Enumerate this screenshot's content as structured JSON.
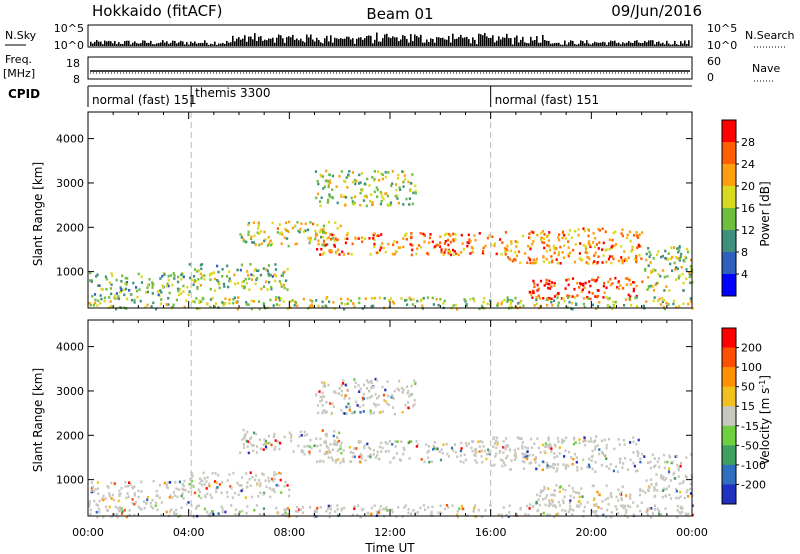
{
  "header": {
    "station": "Hokkaido (fitACF)",
    "beam": "Beam 01",
    "date": "09/Jun/2016"
  },
  "panels": {
    "nsky": {
      "label": "N.Sky",
      "tick_top": "10^5",
      "tick_bottom": "10^0"
    },
    "nsearch": {
      "label": "N.Search",
      "tick_top": "10^5",
      "tick_bottom": "10^0"
    },
    "freq": {
      "label_line1": "Freq.",
      "label_line2": "[MHz]",
      "tick_top": "18",
      "tick_bottom": "8"
    },
    "nave": {
      "label": "Nave",
      "tick_top": "60",
      "tick_bottom": "0"
    },
    "cpid": {
      "label": "CPID",
      "segments": [
        {
          "label": "normal (fast)  151",
          "start_hour": 0
        },
        {
          "label": "themis 3300",
          "start_hour": 4.1
        },
        {
          "label": "normal (fast)  151",
          "start_hour": 16
        }
      ]
    }
  },
  "chart_data": {
    "type": "heatmap",
    "x_range_hours": [
      0,
      24
    ],
    "x_tick_labels": [
      "00:00",
      "04:00",
      "08:00",
      "12:00",
      "16:00",
      "20:00",
      "00:00"
    ],
    "xlabel": "Time UT",
    "ylabel": "Slant Range [km]",
    "y_range_km": [
      180,
      4600
    ],
    "y_ticks": [
      1000,
      2000,
      3000,
      4000
    ],
    "y_tick_labels": [
      "1000",
      "2000",
      "3000",
      "4000"
    ],
    "mode_change_hours": [
      4.1,
      16
    ],
    "power_panel": {
      "colorbar_label": "Power [dB]",
      "colorbar_ticks": [
        "4",
        "8",
        "12",
        "16",
        "20",
        "24",
        "28"
      ],
      "colorbar_colors": [
        "#0000ff",
        "#2f5fbf",
        "#3f8f7f",
        "#6fbf3f",
        "#d9d91f",
        "#ff9f0f",
        "#ff5f00",
        "#ff0000"
      ],
      "scatter_regions": [
        {
          "t_start": 0,
          "t_end": 4,
          "r_start": 450,
          "r_end": 1000,
          "level": 0.4
        },
        {
          "t_start": 4,
          "t_end": 8,
          "r_start": 600,
          "r_end": 1200,
          "level": 0.45
        },
        {
          "t_start": 6,
          "t_end": 10,
          "r_start": 1600,
          "r_end": 2150,
          "level": 0.55
        },
        {
          "t_start": 9,
          "t_end": 13,
          "r_start": 2500,
          "r_end": 3300,
          "level": 0.5
        },
        {
          "t_start": 9,
          "t_end": 16,
          "r_start": 1400,
          "r_end": 1900,
          "level": 0.8
        },
        {
          "t_start": 16,
          "t_end": 22,
          "r_start": 1200,
          "r_end": 2000,
          "level": 0.75
        },
        {
          "t_start": 17.5,
          "t_end": 22,
          "r_start": 400,
          "r_end": 900,
          "level": 0.95
        },
        {
          "t_start": 22,
          "t_end": 24,
          "r_start": 600,
          "r_end": 1600,
          "level": 0.45
        },
        {
          "t_start": 0,
          "t_end": 24,
          "r_start": 180,
          "r_end": 450,
          "level": 0.5
        }
      ]
    },
    "velocity_panel": {
      "colorbar_label": "Velocity [m s^-1]",
      "colorbar_ticks": [
        "200",
        "100",
        "50",
        "15",
        "-15",
        "-50",
        "-100",
        "-200"
      ],
      "colorbar_colors": [
        "#2030c0",
        "#306fbf",
        "#3f9f5f",
        "#6fcf3f",
        "#c8c8c0",
        "#f0c020",
        "#ff9000",
        "#ff5000",
        "#ff0000"
      ],
      "dominant_color": "#c8c8c0"
    }
  }
}
